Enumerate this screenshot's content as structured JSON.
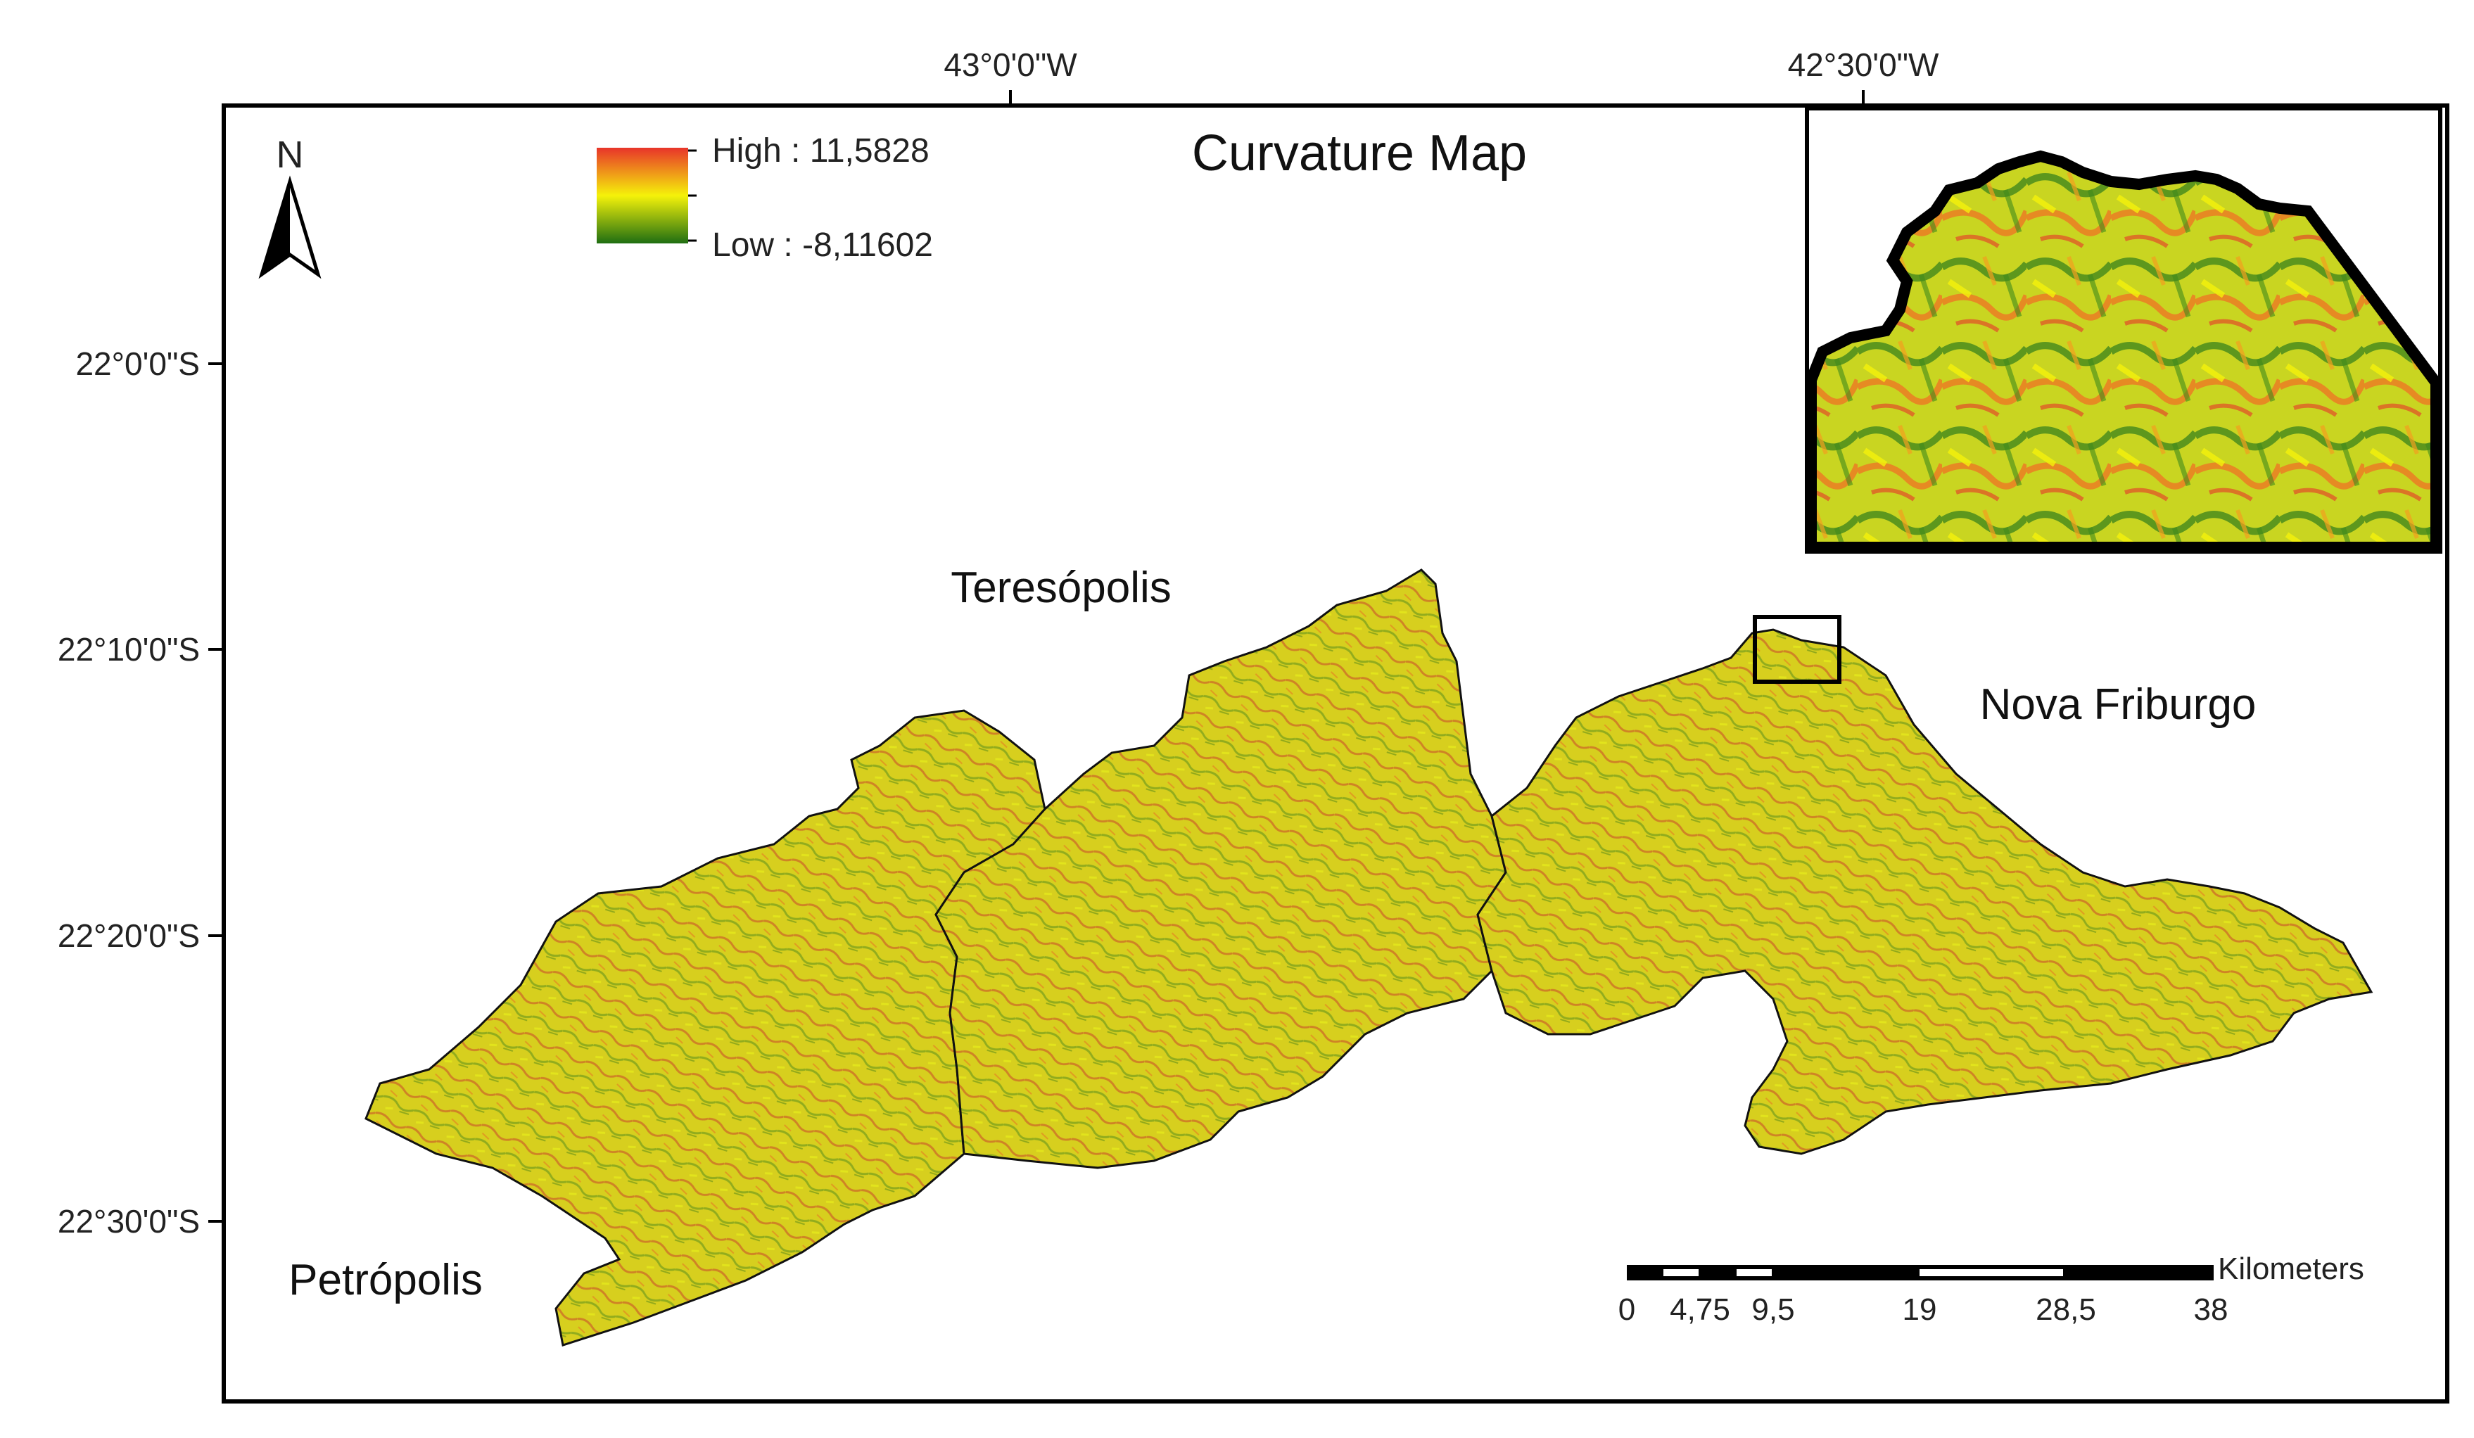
{
  "title": "Curvature Map",
  "north_arrow": {
    "label": "N"
  },
  "legend": {
    "high_label": "High : 11,5828",
    "low_label": "Low : -8,11602",
    "high_color": "#e8342a",
    "mid_color": "#f5f20a",
    "low_color": "#1f6e12"
  },
  "graticule": {
    "longitude_labels": [
      "43°0'0\"W",
      "42°30'0\"W"
    ],
    "latitude_labels": [
      "22°0'0\"S",
      "22°10'0\"S",
      "22°20'0\"S",
      "22°30'0\"S"
    ]
  },
  "cities": {
    "teresopolis": "Teresópolis",
    "nova_friburgo": "Nova Friburgo",
    "petropolis": "Petrópolis"
  },
  "scale_bar": {
    "unit": "Kilometers",
    "ticks": [
      "0",
      "4,75",
      "9,5",
      "19",
      "28,5",
      "38"
    ]
  },
  "colors": {
    "frame": "#000000",
    "terrain_fill": "#d7cf1e",
    "terrain_texture_red": "#c0392b",
    "terrain_texture_green": "#2f7d1b"
  }
}
